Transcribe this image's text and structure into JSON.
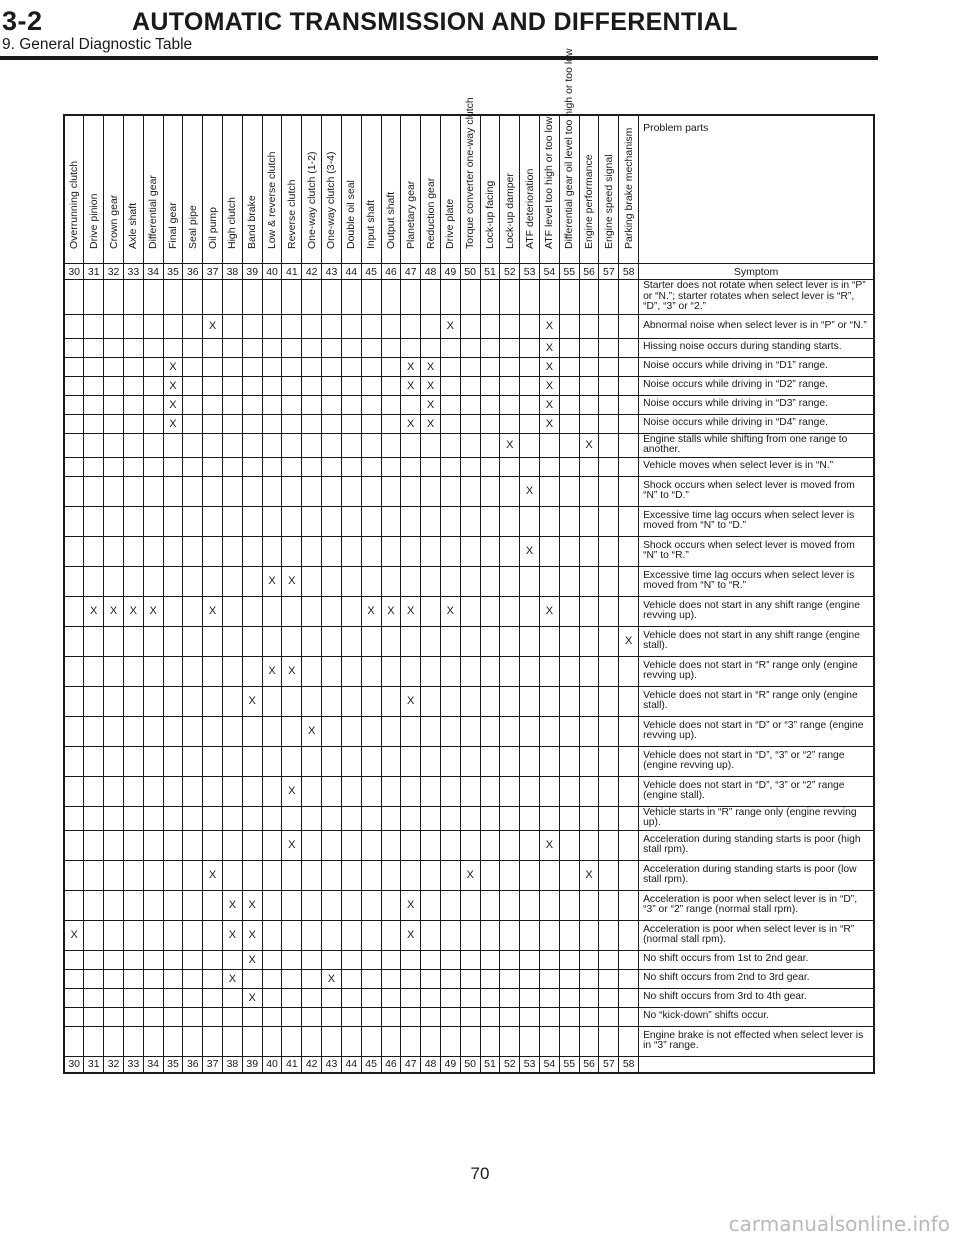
{
  "header": {
    "section": "3-2",
    "title": "AUTOMATIC TRANSMISSION AND DIFFERENTIAL",
    "subtitle": "9. General Diagnostic Table"
  },
  "table": {
    "problem_label": "Problem parts",
    "symptom_label": "Symptom",
    "columns": [
      {
        "num": "30",
        "name": "Overrunning clutch"
      },
      {
        "num": "31",
        "name": "Drive pinion"
      },
      {
        "num": "32",
        "name": "Crown gear"
      },
      {
        "num": "33",
        "name": "Axle shaft"
      },
      {
        "num": "34",
        "name": "Differential gear"
      },
      {
        "num": "35",
        "name": "Final gear"
      },
      {
        "num": "36",
        "name": "Seal pipe"
      },
      {
        "num": "37",
        "name": "Oil pump"
      },
      {
        "num": "38",
        "name": "High clutch"
      },
      {
        "num": "39",
        "name": "Band brake"
      },
      {
        "num": "40",
        "name": "Low & reverse clutch"
      },
      {
        "num": "41",
        "name": "Reverse clutch"
      },
      {
        "num": "42",
        "name": "One-way clutch (1-2)"
      },
      {
        "num": "43",
        "name": "One-way clutch (3-4)"
      },
      {
        "num": "44",
        "name": "Double oil seal"
      },
      {
        "num": "45",
        "name": "Input shaft"
      },
      {
        "num": "46",
        "name": "Output shaft"
      },
      {
        "num": "47",
        "name": "Planetary gear"
      },
      {
        "num": "48",
        "name": "Reduction gear"
      },
      {
        "num": "49",
        "name": "Drive plate"
      },
      {
        "num": "50",
        "name": "Torque converter one-way clutch"
      },
      {
        "num": "51",
        "name": "Lock-up facing"
      },
      {
        "num": "52",
        "name": "Lock-up damper"
      },
      {
        "num": "53",
        "name": "ATF deterioration"
      },
      {
        "num": "54",
        "name": "ATF level too high or too low"
      },
      {
        "num": "55",
        "name": "Differential gear oil level too high or too low"
      },
      {
        "num": "56",
        "name": "Engine performance"
      },
      {
        "num": "57",
        "name": "Engine speed signal"
      },
      {
        "num": "58",
        "name": "Parking brake mechanism"
      }
    ],
    "rows": [
      {
        "symptom": "Starter does not rotate when select lever is in “P” or “N.”; starter rotates when select lever is “R”, “D”, “3” or “2.”",
        "marks": []
      },
      {
        "symptom": "Abnormal noise when select lever is in “P” or “N.”",
        "marks": [
          37,
          49,
          54
        ]
      },
      {
        "symptom": "Hissing noise occurs during standing starts.",
        "marks": [
          54
        ]
      },
      {
        "symptom": "Noise occurs while driving in “D1” range.",
        "marks": [
          35,
          47,
          48,
          54
        ]
      },
      {
        "symptom": "Noise occurs while driving in “D2” range.",
        "marks": [
          35,
          47,
          48,
          54
        ]
      },
      {
        "symptom": "Noise occurs while driving in “D3” range.",
        "marks": [
          35,
          48,
          54
        ]
      },
      {
        "symptom": "Noise occurs while driving in “D4” range.",
        "marks": [
          35,
          47,
          48,
          54
        ]
      },
      {
        "symptom": "Engine stalls while shifting from one range to another.",
        "marks": [
          52,
          56
        ]
      },
      {
        "symptom": "Vehicle moves when select lever is in “N.”",
        "marks": []
      },
      {
        "symptom": "Shock occurs when select lever is moved from “N” to “D.”",
        "marks": [
          53
        ]
      },
      {
        "symptom": "Excessive time lag occurs when select lever is moved from “N” to “D.”",
        "marks": []
      },
      {
        "symptom": "Shock occurs when select lever is moved from “N” to “R.”",
        "marks": [
          53
        ]
      },
      {
        "symptom": "Excessive time lag occurs when select lever is moved from “N” to “R.”",
        "marks": [
          40,
          41
        ]
      },
      {
        "symptom": "Vehicle does not start in any shift range (engine revving up).",
        "marks": [
          31,
          32,
          33,
          34,
          37,
          45,
          46,
          47,
          49,
          54
        ]
      },
      {
        "symptom": "Vehicle does not start in any shift range (engine stall).",
        "marks": [
          58
        ]
      },
      {
        "symptom": "Vehicle does not start in “R” range only (engine revving up).",
        "marks": [
          40,
          41
        ]
      },
      {
        "symptom": "Vehicle does not start in “R” range only (engine stall).",
        "marks": [
          39,
          47
        ]
      },
      {
        "symptom": "Vehicle does not start in “D” or “3” range (engine revving up).",
        "marks": [
          42
        ]
      },
      {
        "symptom": "Vehicle does not start in “D”, “3” or “2” range (engine revving up).",
        "marks": []
      },
      {
        "symptom": "Vehicle does not start in “D”, “3” or “2” range (engine stall).",
        "marks": [
          41
        ]
      },
      {
        "symptom": "Vehicle starts in “R” range only (engine revving up).",
        "marks": []
      },
      {
        "symptom": "Acceleration during standing starts is poor (high stall rpm).",
        "marks": [
          41,
          54
        ]
      },
      {
        "symptom": "Acceleration during standing starts is poor (low stall rpm).",
        "marks": [
          37,
          50,
          56
        ]
      },
      {
        "symptom": "Acceleration is poor when select lever is in “D”, “3” or “2” range (normal stall rpm).",
        "marks": [
          38,
          39,
          47
        ]
      },
      {
        "symptom": "Acceleration is poor when select lever is in “R” (normal stall rpm).",
        "marks": [
          30,
          38,
          39,
          47
        ]
      },
      {
        "symptom": "No shift occurs from 1st to 2nd gear.",
        "marks": [
          39
        ]
      },
      {
        "symptom": "No shift occurs from 2nd to 3rd gear.",
        "marks": [
          38,
          43
        ]
      },
      {
        "symptom": "No shift occurs from 3rd to 4th gear.",
        "marks": [
          39
        ]
      },
      {
        "symptom": "No “kick-down” shifts occur.",
        "marks": []
      },
      {
        "symptom": "Engine brake is not effected when select lever is in “3” range.",
        "marks": []
      }
    ],
    "mark_symbol": "X"
  },
  "footer": {
    "page_number": "70",
    "watermark": "carmanualsonline.info"
  }
}
